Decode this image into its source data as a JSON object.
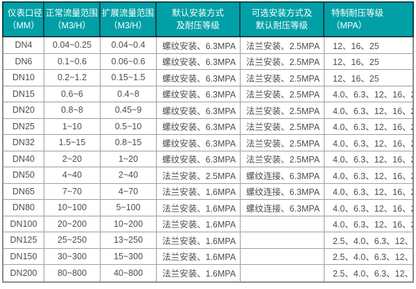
{
  "colors": {
    "header_bg": "#00A0A6",
    "header_border": "#0E4449",
    "header_text": "#FFFFFF",
    "grid_line": "#9C9C9C",
    "outer_border": "#8A8A8A",
    "body_text": "#4D4D4D",
    "page_bg": "#FFFFFF"
  },
  "table": {
    "columns": [
      {
        "id": "diameter",
        "lines": [
          "仪表口径",
          "（MM）"
        ]
      },
      {
        "id": "normal_flow",
        "lines": [
          "正常流量范围",
          "（M3/H）"
        ]
      },
      {
        "id": "extended_flow",
        "lines": [
          "扩展流量范围",
          "（M3/H）"
        ]
      },
      {
        "id": "default_install",
        "lines": [
          "默认安装方式",
          "及耐压等级"
        ]
      },
      {
        "id": "optional_install",
        "lines": [
          "可选安装方式及",
          "默认耐压等级"
        ]
      },
      {
        "id": "special_pressure",
        "lines": [
          "特制耐压等级",
          "（MPA）"
        ]
      }
    ],
    "rows": [
      [
        "DN4",
        "0.04~0.25",
        "0.04~0.4",
        "螺纹安装、6.3MPA",
        "法兰安装、2.5MPA",
        "12、16、25"
      ],
      [
        "DN6",
        "0.1~0.6",
        "0.06~0.6",
        "螺纹安装、6.3MPA",
        "法兰安装、2.5MPA",
        "12、16、25"
      ],
      [
        "DN10",
        "0.2~1.2",
        "0.15~1.5",
        "螺纹安装、6.3MPA",
        "法兰安装、2.5MPA",
        "12、16、25"
      ],
      [
        "DN15",
        "0.6~6",
        "0.4~8",
        "螺纹安装、6.3MPA",
        "法兰安装、2.5MPA",
        "4.0、6.3、12、16、25"
      ],
      [
        "DN20",
        "0.8~8",
        "0.45~9",
        "螺纹安装、6.3MPA",
        "法兰安装、2.5MPA",
        "4.0、6.3、12、16、25"
      ],
      [
        "DN25",
        "1~10",
        "0.5~10",
        "螺纹安装、6.3MPA",
        "法兰安装、2.5MPA",
        "4.0、6.3、12、16、25"
      ],
      [
        "DN32",
        "1.5~15",
        "0.8~15",
        "螺纹安装、6.3MPA",
        "法兰安装、2.5MPA",
        "4.0、6.3、12、16、25"
      ],
      [
        "DN40",
        "2~20",
        "1~20",
        "螺纹安装、6.3MPA",
        "法兰安装、2.5MPA",
        "4.0、6.3、12、16、25"
      ],
      [
        "DN50",
        "4~40",
        "2~40",
        "法兰安装、2.5MPA",
        "螺纹连接、6.3MPA",
        "4.0、6.3、12、16、25"
      ],
      [
        "DN65",
        "7~70",
        "4~70",
        "法兰安装、1.6MPA",
        "螺纹连接、6.3MPA",
        "4.0、6.3、12、16、25"
      ],
      [
        "DN80",
        "10~100",
        "5~100",
        "法兰安装、1.6MPA",
        "螺纹连接、6.3MPA",
        "4.0、6.3、12、16、25"
      ],
      [
        "DN100",
        "20~200",
        "10~200",
        "法兰安装、1.6MPA",
        "",
        "4.0、6.3、12、16、25"
      ],
      [
        "DN125",
        "25~250",
        "13~250",
        "法兰安装、1.6MPA",
        "",
        "2.5、4.0、6.3、12、16"
      ],
      [
        "DN150",
        "30~300",
        "15~300",
        "法兰安装、1.6MPA",
        "",
        "2.5、4.0、6.3、12、16"
      ],
      [
        "DN200",
        "80~800",
        "40~800",
        "法兰安装、1.6MPA",
        "",
        "2.5、4.0、6.3、12、16"
      ]
    ]
  }
}
